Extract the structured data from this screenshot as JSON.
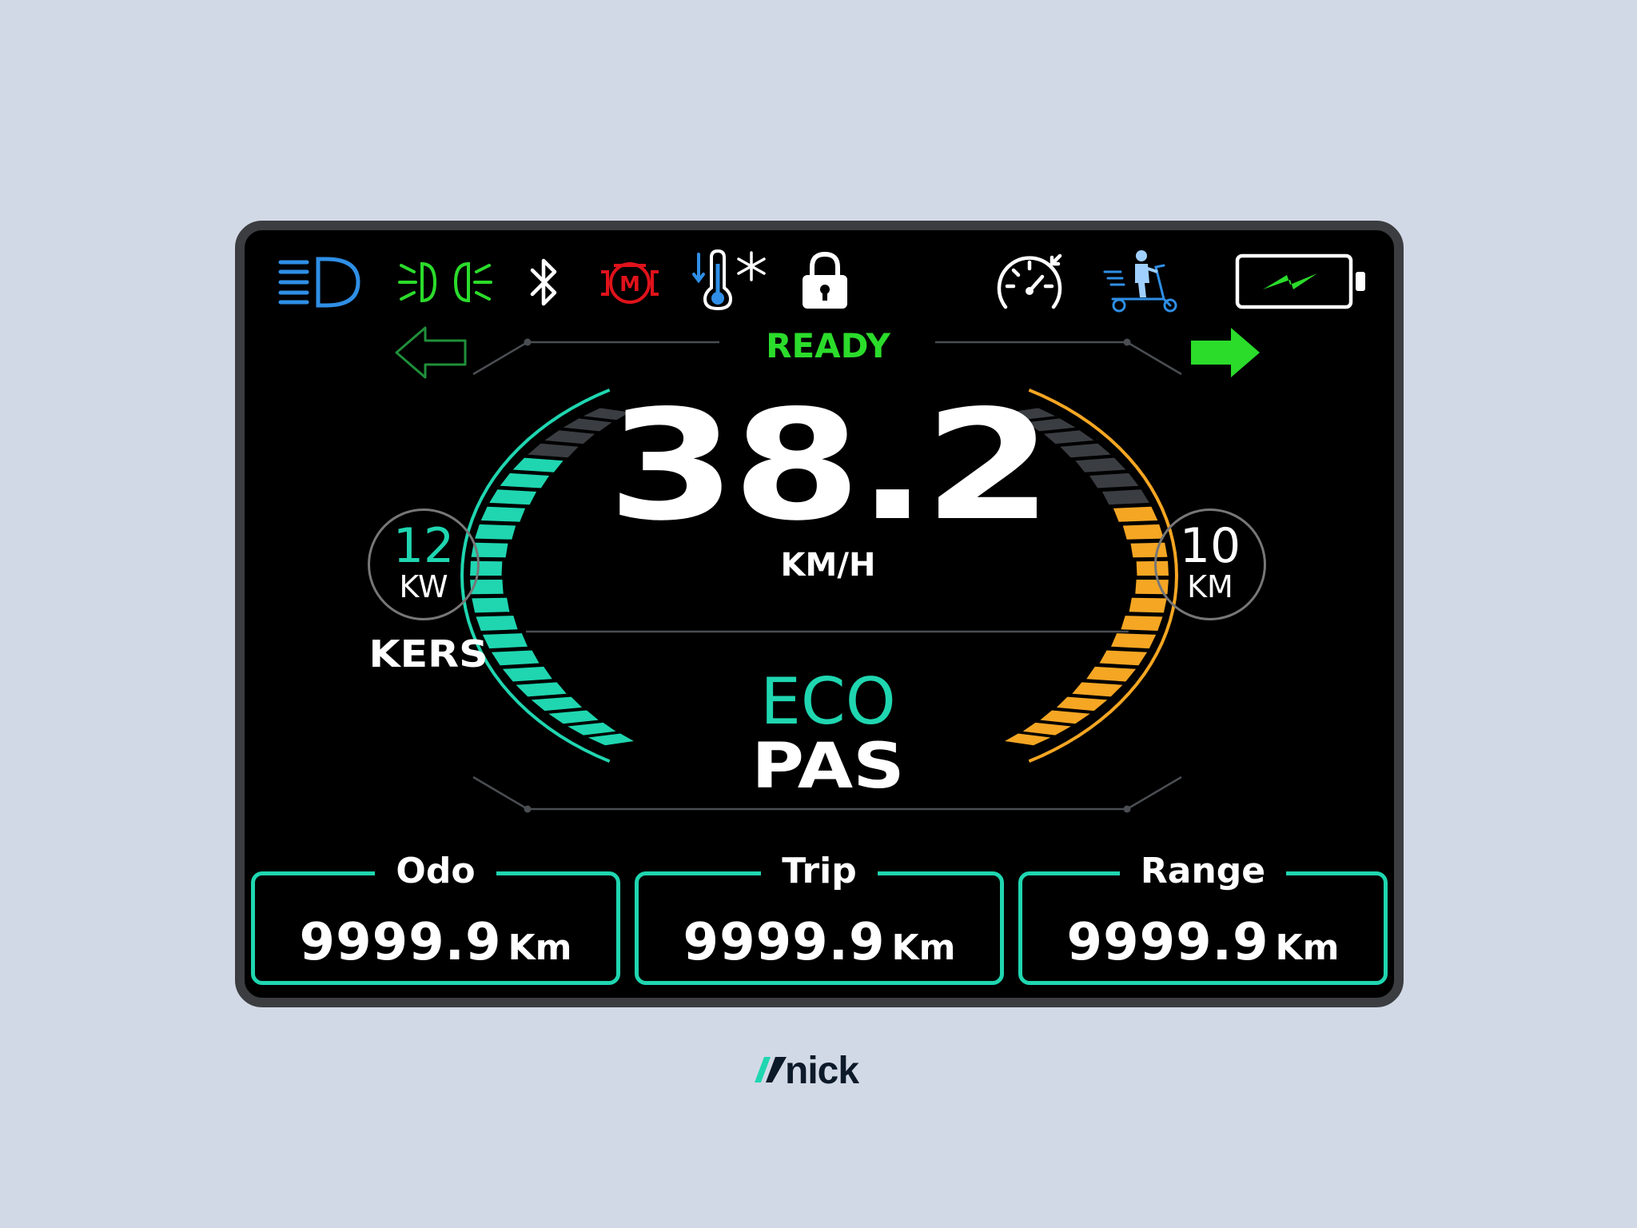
{
  "status": {
    "ready": "READY"
  },
  "speed": {
    "value": "38.2",
    "unit": "KM/H"
  },
  "ride_mode": {
    "mode": "ECO",
    "assist": "PAS"
  },
  "power": {
    "value": "12",
    "unit": "KW",
    "label": "KERS"
  },
  "distance": {
    "value": "10",
    "unit": "KM"
  },
  "panels": [
    {
      "label": "Odo",
      "value": "9999.9",
      "unit": "Km"
    },
    {
      "label": "Trip",
      "value": "9999.9",
      "unit": "Km"
    },
    {
      "label": "Range",
      "value": "9999.9",
      "unit": "Km"
    }
  ],
  "icons": {
    "high_beam": "headlight-high-beam-icon",
    "parking_light": "parking-light-icon",
    "bluetooth": "bluetooth-icon",
    "motor_fault": "motor-fault-icon",
    "temperature": "temperature-icon",
    "lock": "lock-icon",
    "cruise": "cruise-control-icon",
    "scooter": "scooter-icon",
    "battery": "battery-charging-icon",
    "turn_left": "turn-left-arrow-icon",
    "turn_right": "turn-right-arrow-icon"
  },
  "gauges": {
    "power_level": 0.8,
    "range_level": 0.7
  },
  "colors": {
    "teal": "#1fd6b0",
    "orange": "#f5a623",
    "green": "#2bdc2b",
    "blue": "#2f8fe6",
    "red": "#e0121b",
    "inactive": "#3a3d42"
  },
  "brand": {
    "name": "nick"
  }
}
